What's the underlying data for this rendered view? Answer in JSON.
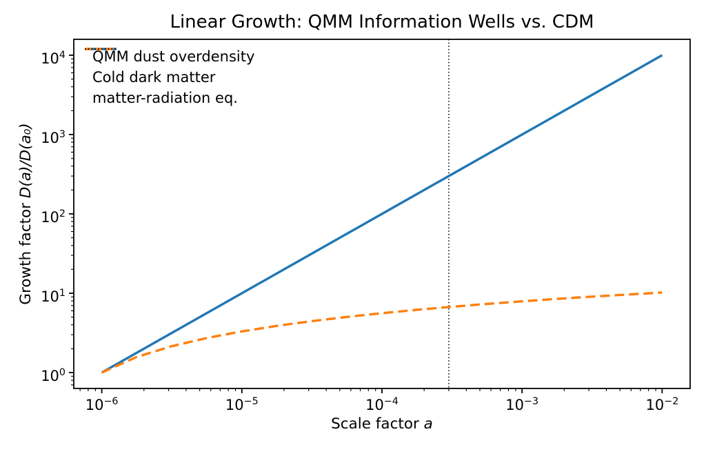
{
  "chart_data": {
    "type": "line",
    "title": "Linear Growth: QMM Information Wells vs. CDM",
    "xlabel": {
      "prefix": "Scale factor ",
      "math": "a"
    },
    "ylabel": {
      "prefix": "Growth factor ",
      "math": "D(a)/D(a₀)"
    },
    "x_scale": "log",
    "y_scale": "log",
    "xlim_log10": [
      -6.2,
      -1.8
    ],
    "ylim_log10": [
      -0.2,
      4.2
    ],
    "grid": false,
    "x_ticks": [
      {
        "base": "10",
        "exp": "−6",
        "value": 1e-06
      },
      {
        "base": "10",
        "exp": "−5",
        "value": 1e-05
      },
      {
        "base": "10",
        "exp": "−4",
        "value": 0.0001
      },
      {
        "base": "10",
        "exp": "−3",
        "value": 0.001
      },
      {
        "base": "10",
        "exp": "−2",
        "value": 0.01
      }
    ],
    "y_ticks": [
      {
        "base": "10",
        "exp": "0",
        "value": 1
      },
      {
        "base": "10",
        "exp": "1",
        "value": 10
      },
      {
        "base": "10",
        "exp": "2",
        "value": 100
      },
      {
        "base": "10",
        "exp": "3",
        "value": 1000
      },
      {
        "base": "10",
        "exp": "4",
        "value": 10000
      }
    ],
    "series": [
      {
        "name": "QMM dust overdensity",
        "color": "#1f77b4",
        "style": "solid",
        "width": 3.4,
        "x": [
          1e-06,
          3.162e-06,
          1e-05,
          3.162e-05,
          0.0001,
          0.0003162,
          0.001,
          0.003162,
          0.01
        ],
        "y": [
          1,
          3.162,
          10,
          31.62,
          100,
          316.2,
          1000,
          3162,
          10000
        ]
      },
      {
        "name": "Cold dark matter",
        "color": "#ff7f0e",
        "style": "dashed",
        "width": 3.4,
        "x": [
          1e-06,
          1.778e-06,
          3.162e-06,
          5.623e-06,
          1e-05,
          1.778e-05,
          3.162e-05,
          5.623e-05,
          0.0001,
          0.0001778,
          0.0003162,
          0.0005623,
          0.001,
          0.001778,
          0.003162,
          0.005623,
          0.01
        ],
        "y": [
          1.0,
          1.576,
          2.151,
          2.727,
          3.303,
          3.878,
          4.454,
          5.029,
          5.605,
          6.181,
          6.756,
          7.332,
          7.908,
          8.483,
          9.059,
          9.634,
          10.21
        ]
      }
    ],
    "vline": {
      "label": "matter-radiation eq.",
      "x": 0.0003,
      "color": "#000000",
      "style": "dotted"
    },
    "legend": {
      "position": "upper-left",
      "frame": false,
      "entries": [
        {
          "label": "QMM dust overdensity",
          "color": "#1f77b4",
          "style": "solid"
        },
        {
          "label": "Cold dark matter",
          "color": "#ff7f0e",
          "style": "dashed"
        },
        {
          "label": "matter-radiation eq.",
          "color": "#000000",
          "style": "dotted"
        }
      ]
    },
    "axis_color": "#000000",
    "background_color": "#ffffff"
  }
}
